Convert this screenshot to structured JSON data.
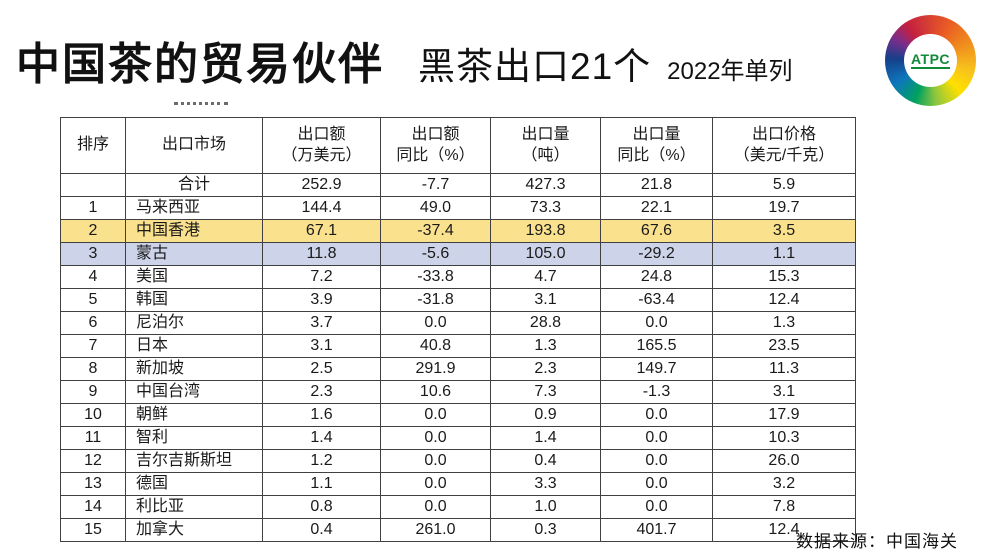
{
  "header": {
    "title": "中国茶的贸易伙伴",
    "subtitle": "黑茶出口21个",
    "note": "2022年单列",
    "logo_text": "ATPC"
  },
  "footer": {
    "source": "数据来源：中国海关"
  },
  "colors": {
    "highlight_yellow": "#F9E18E",
    "highlight_blue": "#CDD3E8",
    "table_border": "#404040",
    "logo_text_green": "#128A39"
  },
  "table": {
    "columns": [
      {
        "lines": [
          "排序",
          ""
        ]
      },
      {
        "lines": [
          "出口市场",
          ""
        ]
      },
      {
        "lines": [
          "出口额",
          "（万美元）"
        ]
      },
      {
        "lines": [
          "出口额",
          "同比（%）"
        ]
      },
      {
        "lines": [
          "出口量",
          "（吨）"
        ]
      },
      {
        "lines": [
          "出口量",
          "同比（%）"
        ]
      },
      {
        "lines": [
          "出口价格",
          "（美元/千克）"
        ]
      }
    ],
    "rows": [
      {
        "total": true,
        "highlight": null,
        "cells": [
          "",
          "合计",
          "252.9",
          "-7.7",
          "427.3",
          "21.8",
          "5.9"
        ]
      },
      {
        "total": false,
        "highlight": null,
        "cells": [
          "1",
          "马来西亚",
          "144.4",
          "49.0",
          "73.3",
          "22.1",
          "19.7"
        ]
      },
      {
        "total": false,
        "highlight": "yellow",
        "cells": [
          "2",
          "中国香港",
          "67.1",
          "-37.4",
          "193.8",
          "67.6",
          "3.5"
        ]
      },
      {
        "total": false,
        "highlight": "blue",
        "cells": [
          "3",
          "蒙古",
          "11.8",
          "-5.6",
          "105.0",
          "-29.2",
          "1.1"
        ]
      },
      {
        "total": false,
        "highlight": null,
        "cells": [
          "4",
          "美国",
          "7.2",
          "-33.8",
          "4.7",
          "24.8",
          "15.3"
        ]
      },
      {
        "total": false,
        "highlight": null,
        "cells": [
          "5",
          "韩国",
          "3.9",
          "-31.8",
          "3.1",
          "-63.4",
          "12.4"
        ]
      },
      {
        "total": false,
        "highlight": null,
        "cells": [
          "6",
          "尼泊尔",
          "3.7",
          "0.0",
          "28.8",
          "0.0",
          "1.3"
        ]
      },
      {
        "total": false,
        "highlight": null,
        "cells": [
          "7",
          "日本",
          "3.1",
          "40.8",
          "1.3",
          "165.5",
          "23.5"
        ]
      },
      {
        "total": false,
        "highlight": null,
        "cells": [
          "8",
          "新加坡",
          "2.5",
          "291.9",
          "2.3",
          "149.7",
          "11.3"
        ]
      },
      {
        "total": false,
        "highlight": null,
        "cells": [
          "9",
          "中国台湾",
          "2.3",
          "10.6",
          "7.3",
          "-1.3",
          "3.1"
        ]
      },
      {
        "total": false,
        "highlight": null,
        "cells": [
          "10",
          "朝鲜",
          "1.6",
          "0.0",
          "0.9",
          "0.0",
          "17.9"
        ]
      },
      {
        "total": false,
        "highlight": null,
        "cells": [
          "11",
          "智利",
          "1.4",
          "0.0",
          "1.4",
          "0.0",
          "10.3"
        ]
      },
      {
        "total": false,
        "highlight": null,
        "cells": [
          "12",
          "吉尔吉斯斯坦",
          "1.2",
          "0.0",
          "0.4",
          "0.0",
          "26.0"
        ]
      },
      {
        "total": false,
        "highlight": null,
        "cells": [
          "13",
          "德国",
          "1.1",
          "0.0",
          "3.3",
          "0.0",
          "3.2"
        ]
      },
      {
        "total": false,
        "highlight": null,
        "cells": [
          "14",
          "利比亚",
          "0.8",
          "0.0",
          "1.0",
          "0.0",
          "7.8"
        ]
      },
      {
        "total": false,
        "highlight": null,
        "cells": [
          "15",
          "加拿大",
          "0.4",
          "261.0",
          "0.3",
          "401.7",
          "12.4"
        ]
      }
    ]
  }
}
